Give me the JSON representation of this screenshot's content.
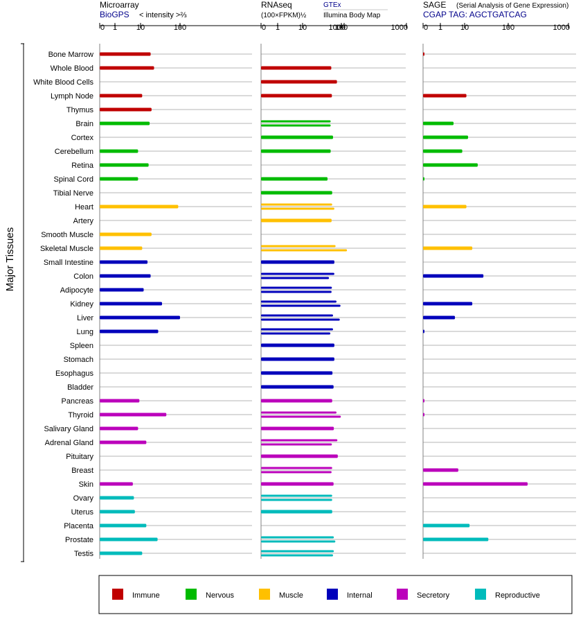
{
  "chart_data": {
    "type": "bar",
    "y_axis_label": "Major Tissues",
    "x_ticks": [
      "0",
      "1",
      "10",
      "100",
      "1000"
    ],
    "tick_values": [
      0,
      1,
      10,
      100,
      1000
    ],
    "categories": [
      "Bone Marrow",
      "Whole Blood",
      "White Blood Cells",
      "Lymph Node",
      "Thymus",
      "Brain",
      "Cortex",
      "Cerebellum",
      "Retina",
      "Spinal Cord",
      "Tibial Nerve",
      "Heart",
      "Artery",
      "Smooth Muscle",
      "Skeletal Muscle",
      "Small Intestine",
      "Colon",
      "Adipocyte",
      "Kidney",
      "Liver",
      "Lung",
      "Spleen",
      "Stomach",
      "Esophagus",
      "Bladder",
      "Pancreas",
      "Thyroid",
      "Salivary Gland",
      "Adrenal Gland",
      "Pituitary",
      "Breast",
      "Skin",
      "Ovary",
      "Uterus",
      "Placenta",
      "Prostate",
      "Testis"
    ],
    "groups": [
      "Immune",
      "Immune",
      "Immune",
      "Immune",
      "Immune",
      "Nervous",
      "Nervous",
      "Nervous",
      "Nervous",
      "Nervous",
      "Nervous",
      "Muscle",
      "Muscle",
      "Muscle",
      "Muscle",
      "Internal",
      "Internal",
      "Internal",
      "Internal",
      "Internal",
      "Internal",
      "Internal",
      "Internal",
      "Internal",
      "Internal",
      "Secretory",
      "Secretory",
      "Secretory",
      "Secretory",
      "Secretory",
      "Secretory",
      "Secretory",
      "Reproductive",
      "Reproductive",
      "Reproductive",
      "Reproductive",
      "Reproductive"
    ],
    "legend": [
      {
        "name": "Immune",
        "color": "#c00000"
      },
      {
        "name": "Nervous",
        "color": "#00bb00"
      },
      {
        "name": "Muscle",
        "color": "#ffc000"
      },
      {
        "name": "Internal",
        "color": "#0000bb"
      },
      {
        "name": "Secretory",
        "color": "#bb00bb"
      },
      {
        "name": "Reproductive",
        "color": "#00bbbb"
      }
    ],
    "panels": [
      {
        "title": "Microarray",
        "subtitle": "BioGPS",
        "unit_label": "< intensity >⅔",
        "values": [
          [
            18
          ],
          [
            22
          ],
          [],
          [
            11
          ],
          [
            19
          ],
          [
            17
          ],
          [],
          [
            8
          ],
          [
            16
          ],
          [
            8
          ],
          [],
          [
            90
          ],
          [],
          [
            19
          ],
          [
            11
          ],
          [
            15
          ],
          [
            18
          ],
          [
            12
          ],
          [
            35
          ],
          [
            100
          ],
          [
            28
          ],
          [],
          [],
          [],
          [],
          [
            9
          ],
          [
            45
          ],
          [
            8
          ],
          [
            14
          ],
          [],
          [],
          [
            5
          ],
          [
            5.5
          ],
          [
            6
          ],
          [
            14
          ],
          [
            27
          ],
          [
            11
          ]
        ]
      },
      {
        "title": "RNAseq",
        "unit_label": "(100×FPKM)½",
        "source_top": "GTEx",
        "source_bottom": "Illumina Body Map",
        "values": [
          [],
          [
            55
          ],
          [
            77
          ],
          [
            57
          ],
          [],
          [
            53,
            53
          ],
          [
            61
          ],
          [
            53
          ],
          [],
          [
            44
          ],
          [
            58
          ],
          [
            58,
            66
          ],
          [
            56
          ],
          [],
          [
            71,
            122
          ],
          [
            66
          ],
          [
            66,
            48
          ],
          [
            57,
            56
          ],
          [
            75,
            95
          ],
          [
            61,
            91
          ],
          [
            61,
            52
          ],
          [
            66
          ],
          [
            66
          ],
          [
            59
          ],
          [
            63
          ],
          [
            58
          ],
          [
            75,
            97
          ],
          [
            64
          ],
          [
            79,
            57
          ],
          [
            81
          ],
          [
            58,
            56
          ],
          [
            63
          ],
          [
            58,
            58
          ],
          [
            58
          ],
          [],
          [
            64,
            70
          ],
          [
            64,
            61
          ]
        ]
      },
      {
        "title": "SAGE",
        "title_note": "(Serial Analysis of Gene Expression)",
        "subtitle": "CGAP TAG: AGCTGATCAG",
        "values": [
          [
            0.05
          ],
          [],
          [],
          [
            11
          ],
          [],
          [
            3.5
          ],
          [
            12
          ],
          [
            8
          ],
          [
            20
          ],
          [
            0.05
          ],
          [],
          [
            11
          ],
          [],
          [],
          [
            15
          ],
          [],
          [
            27
          ],
          [],
          [
            15
          ],
          [
            4
          ],
          [
            0.05
          ],
          [],
          [],
          [],
          [],
          [
            0.05
          ],
          [
            0.05
          ],
          [],
          [],
          [],
          [
            5.5
          ],
          [
            210
          ],
          [],
          [],
          [
            13
          ],
          [
            35
          ],
          []
        ]
      }
    ]
  }
}
